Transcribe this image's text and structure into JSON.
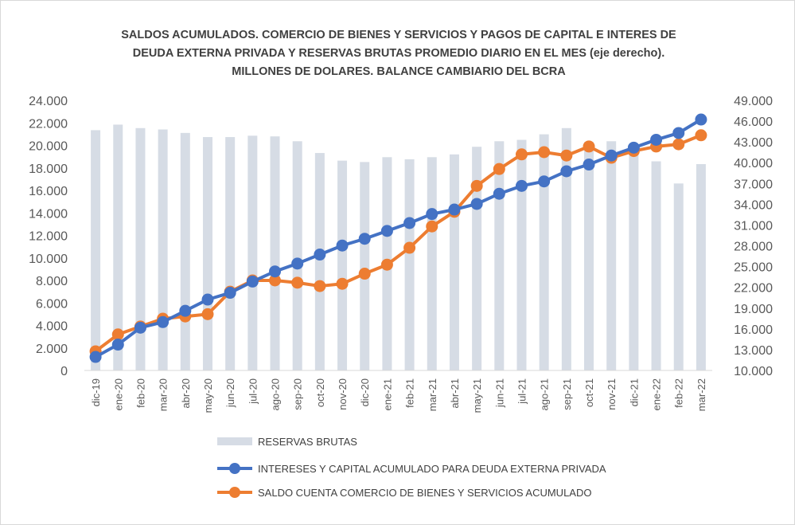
{
  "chart_data": {
    "type": "bar+line",
    "title_lines": [
      "SALDOS ACUMULADOS. COMERCIO DE BIENES Y SERVICIOS Y PAGOS DE CAPITAL E INTERES DE",
      "DEUDA EXTERNA PRIVADA Y RESERVAS BRUTAS PROMEDIO DIARIO EN EL MES (eje derecho).",
      "MILLONES DE DOLARES. BALANCE CAMBIARIO DEL BCRA"
    ],
    "categories": [
      "dic-19",
      "ene-20",
      "feb-20",
      "mar-20",
      "abr-20",
      "may-20",
      "jun-20",
      "jul-20",
      "ago-20",
      "sep-20",
      "oct-20",
      "nov-20",
      "dic-20",
      "ene-21",
      "feb-21",
      "mar-21",
      "abr-21",
      "may-21",
      "jun-21",
      "jul-21",
      "ago-21",
      "sep-21",
      "oct-21",
      "nov-21",
      "dic-21",
      "ene-22",
      "feb-22",
      "mar-22"
    ],
    "left_axis": {
      "min": 0,
      "max": 24000,
      "step": 2000,
      "tick_labels": [
        "0",
        "2.000",
        "4.000",
        "6.000",
        "8.000",
        "10.000",
        "12.000",
        "14.000",
        "16.000",
        "18.000",
        "20.000",
        "22.000",
        "24.000"
      ]
    },
    "right_axis": {
      "min": 10000,
      "max": 49000,
      "step": 3000,
      "tick_labels": [
        "10.000",
        "13.000",
        "16.000",
        "19.000",
        "22.000",
        "25.000",
        "28.000",
        "31.000",
        "34.000",
        "37.000",
        "40.000",
        "43.000",
        "46.000",
        "49.000"
      ]
    },
    "series": [
      {
        "name": "RESERVAS BRUTAS",
        "type": "bar",
        "axis": "right",
        "color": "#d6dce5",
        "values": [
          44700,
          45500,
          45000,
          44800,
          44300,
          43700,
          43700,
          43900,
          43800,
          43100,
          41400,
          40300,
          40100,
          40800,
          40500,
          40800,
          41200,
          42300,
          43100,
          43300,
          44100,
          45000,
          43000,
          43100,
          41400,
          40200,
          37000,
          39800
        ]
      },
      {
        "name": "INTERESES Y CAPITAL ACUMULADO PARA DEUDA EXTERNA PRIVADA",
        "type": "line",
        "axis": "left",
        "color": "#4472c4",
        "values": [
          1200,
          2300,
          3800,
          4300,
          5300,
          6300,
          6900,
          7900,
          8800,
          9500,
          10300,
          11100,
          11700,
          12400,
          13100,
          13900,
          14300,
          14800,
          15700,
          16400,
          16800,
          17700,
          18300,
          19100,
          19800,
          20500,
          21100,
          22300
        ]
      },
      {
        "name": "SALDO CUENTA COMERCIO DE BIENES Y SERVICIOS ACUMULADO",
        "type": "line",
        "axis": "left",
        "color": "#ed7d31",
        "values": [
          1700,
          3200,
          3900,
          4600,
          4800,
          5000,
          7000,
          8000,
          8000,
          7800,
          7500,
          7700,
          8600,
          9400,
          10900,
          12800,
          14100,
          16400,
          17900,
          19200,
          19400,
          19100,
          19900,
          18900,
          19500,
          19900,
          20100,
          20900
        ]
      }
    ],
    "legend_position": "bottom",
    "grid": false
  }
}
